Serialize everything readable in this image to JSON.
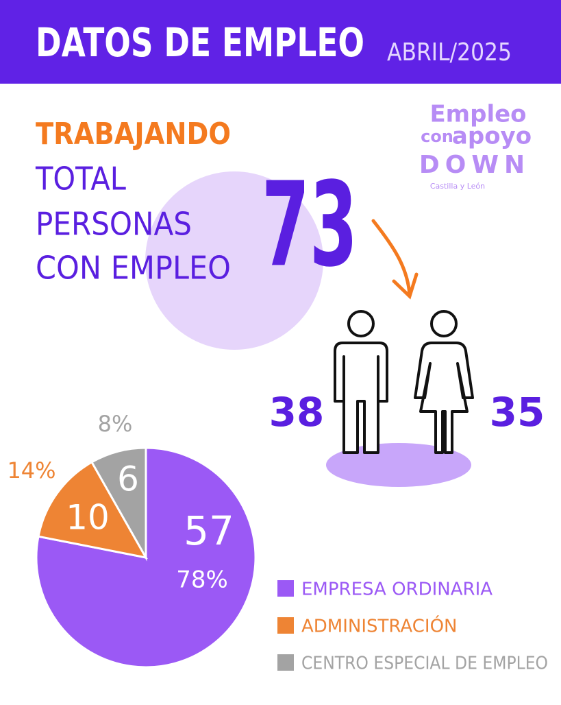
{
  "header": {
    "title": "DATOS DE EMPLEO",
    "date": "ABRIL/2025"
  },
  "logo": {
    "line1": "Empleo",
    "line2a": "con",
    "line2b": "apoyo",
    "line3": "DOWN",
    "line4": "Castilla y León"
  },
  "summary": {
    "label": "TRABAJANDO",
    "lines": [
      "TOTAL",
      "PERSONAS",
      "CON EMPLEO"
    ],
    "total": 73
  },
  "gender": {
    "men": 38,
    "women": 35
  },
  "chart_data": {
    "type": "pie",
    "categories": [
      "EMPRESA ORDINARIA",
      "ADMINISTRACIÓN",
      "CENTRO ESPECIAL DE EMPLEO"
    ],
    "values": [
      57,
      10,
      6
    ],
    "percent_labels": [
      "78%",
      "14%",
      "8%"
    ],
    "colors": [
      "#9b59f5",
      "#ee8434",
      "#a3a3a3"
    ]
  }
}
